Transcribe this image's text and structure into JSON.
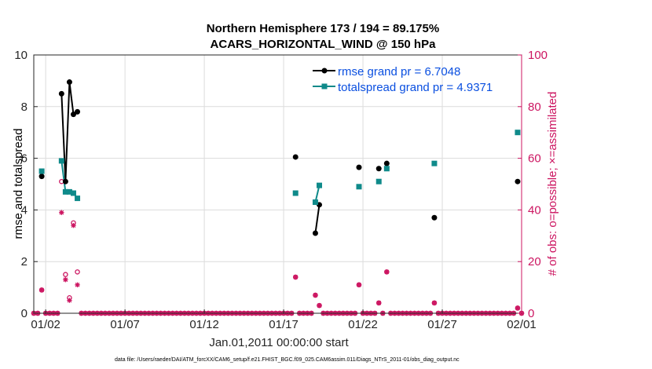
{
  "chart_data": {
    "type": "line",
    "title": [
      "Northern Hemisphere 173 / 194 = 89.175%",
      "ACARS_HORIZONTAL_WIND @ 150 hPa"
    ],
    "xlabel": "Jan.01,2011 00:00:00 start",
    "ylabel_left": "rmse and totalspread",
    "ylabel_right": "# of obs: o=possible; ×=assimilated",
    "footnote": "data file: /Users/raeder/DAI/ATM_forcXX/CAM6_setup/f.e21.FHIST_BGC.f09_025.CAM6assim.011/Diags_NTrS_2011-01/obs_diag_output.nc",
    "xlim": [
      1.25,
      32.0
    ],
    "ylim_left": [
      0,
      10
    ],
    "ylim_right": [
      0,
      100
    ],
    "x_ticks": [
      2,
      7,
      12,
      17,
      22,
      27,
      32
    ],
    "x_tick_labels": [
      "01/02",
      "01/07",
      "01/12",
      "01/17",
      "01/22",
      "01/27",
      "02/01"
    ],
    "y_ticks_left": [
      0,
      2,
      4,
      6,
      8,
      10
    ],
    "y_ticks_right": [
      0,
      20,
      40,
      60,
      80,
      100
    ],
    "grid": true,
    "legend_position": "top-right",
    "colors": {
      "rmse": "#000000",
      "spread": "#0f8a8a",
      "obs": "#cc1460",
      "legend_text": "#0a4fe0"
    },
    "series": [
      {
        "name": "rmse grand pr = 6.7048",
        "key": "rmse",
        "axis": "left",
        "x": [
          1.75,
          3.0,
          3.25,
          3.5,
          3.75,
          4.0,
          17.75,
          19.0,
          19.25,
          21.75,
          23.0,
          23.5,
          26.5,
          31.75
        ],
        "values": [
          5.3,
          8.5,
          5.1,
          8.95,
          7.7,
          7.8,
          6.05,
          3.1,
          4.2,
          5.65,
          5.6,
          5.8,
          3.7,
          5.1
        ],
        "segments": [
          [
            1,
            2,
            3,
            4,
            5
          ],
          [
            7,
            8
          ]
        ]
      },
      {
        "name": "totalspread grand pr = 4.9371",
        "key": "spread",
        "axis": "left",
        "x": [
          1.75,
          3.0,
          3.25,
          3.5,
          3.75,
          4.0,
          17.75,
          19.0,
          19.25,
          21.75,
          23.0,
          23.5,
          26.5,
          31.75
        ],
        "values": [
          5.5,
          5.9,
          4.7,
          4.7,
          4.65,
          4.45,
          4.65,
          4.3,
          4.95,
          4.9,
          5.1,
          5.6,
          5.8,
          7.0
        ],
        "segments": [
          [
            1,
            2,
            3,
            4,
            5
          ],
          [
            7,
            8
          ]
        ]
      }
    ],
    "obs_possible": {
      "x": [
        1.75,
        3.0,
        3.25,
        3.5,
        3.75,
        4.0,
        17.75,
        19.0,
        19.25,
        21.75,
        23.0,
        23.5,
        26.5,
        31.75
      ],
      "values": [
        9,
        51,
        15,
        6,
        35,
        16,
        14,
        7,
        3,
        11,
        4,
        16,
        4,
        2
      ]
    },
    "obs_assimilated": {
      "x": [
        1.75,
        3.0,
        3.25,
        3.5,
        3.75,
        4.0,
        17.75,
        19.0,
        19.25,
        21.75,
        23.0,
        23.5,
        26.5,
        31.75
      ],
      "values": [
        9,
        39,
        13,
        5,
        34,
        11,
        14,
        7,
        3,
        11,
        4,
        16,
        4,
        2
      ]
    },
    "obs_zero_x_range": [
      1.25,
      32.0
    ],
    "obs_zero_step": 0.25
  }
}
